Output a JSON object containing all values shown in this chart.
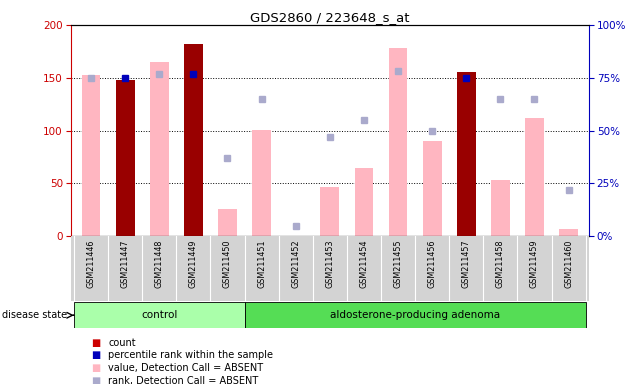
{
  "title": "GDS2860 / 223648_s_at",
  "samples": [
    "GSM211446",
    "GSM211447",
    "GSM211448",
    "GSM211449",
    "GSM211450",
    "GSM211451",
    "GSM211452",
    "GSM211453",
    "GSM211454",
    "GSM211455",
    "GSM211456",
    "GSM211457",
    "GSM211458",
    "GSM211459",
    "GSM211460"
  ],
  "count": [
    null,
    148,
    null,
    182,
    null,
    null,
    null,
    null,
    null,
    null,
    null,
    155,
    null,
    null,
    null
  ],
  "percentile_rank": [
    null,
    75,
    null,
    77,
    null,
    null,
    null,
    null,
    null,
    null,
    null,
    75,
    null,
    null,
    null
  ],
  "value_absent": [
    153,
    null,
    165,
    null,
    26,
    101,
    null,
    47,
    65,
    178,
    90,
    null,
    53,
    112,
    7
  ],
  "rank_absent": [
    75,
    null,
    77,
    null,
    37,
    65,
    5,
    47,
    55,
    78,
    50,
    null,
    65,
    65,
    22
  ],
  "ylim_left": [
    0,
    200
  ],
  "ylim_right": [
    0,
    100
  ],
  "left_yticks": [
    0,
    50,
    100,
    150,
    200
  ],
  "right_yticks": [
    0,
    25,
    50,
    75,
    100
  ],
  "left_color": "#CC0000",
  "right_color": "#0000BB",
  "bar_color_count": "#990000",
  "bar_color_absent": "#FFB6C1",
  "dot_color_rank": "#0000BB",
  "dot_color_rank_absent": "#AAAACC",
  "background_color": "#FFFFFF",
  "groups": [
    {
      "label": "control",
      "start": 0,
      "end": 4
    },
    {
      "label": "aldosterone-producing adenoma",
      "start": 5,
      "end": 14
    }
  ],
  "group_colors": [
    "#AAFFAA",
    "#55DD55"
  ],
  "legend_items": [
    {
      "color": "#CC0000",
      "label": "count"
    },
    {
      "color": "#0000BB",
      "label": "percentile rank within the sample"
    },
    {
      "color": "#FFB6C1",
      "label": "value, Detection Call = ABSENT"
    },
    {
      "color": "#AAAACC",
      "label": "rank, Detection Call = ABSENT"
    }
  ]
}
